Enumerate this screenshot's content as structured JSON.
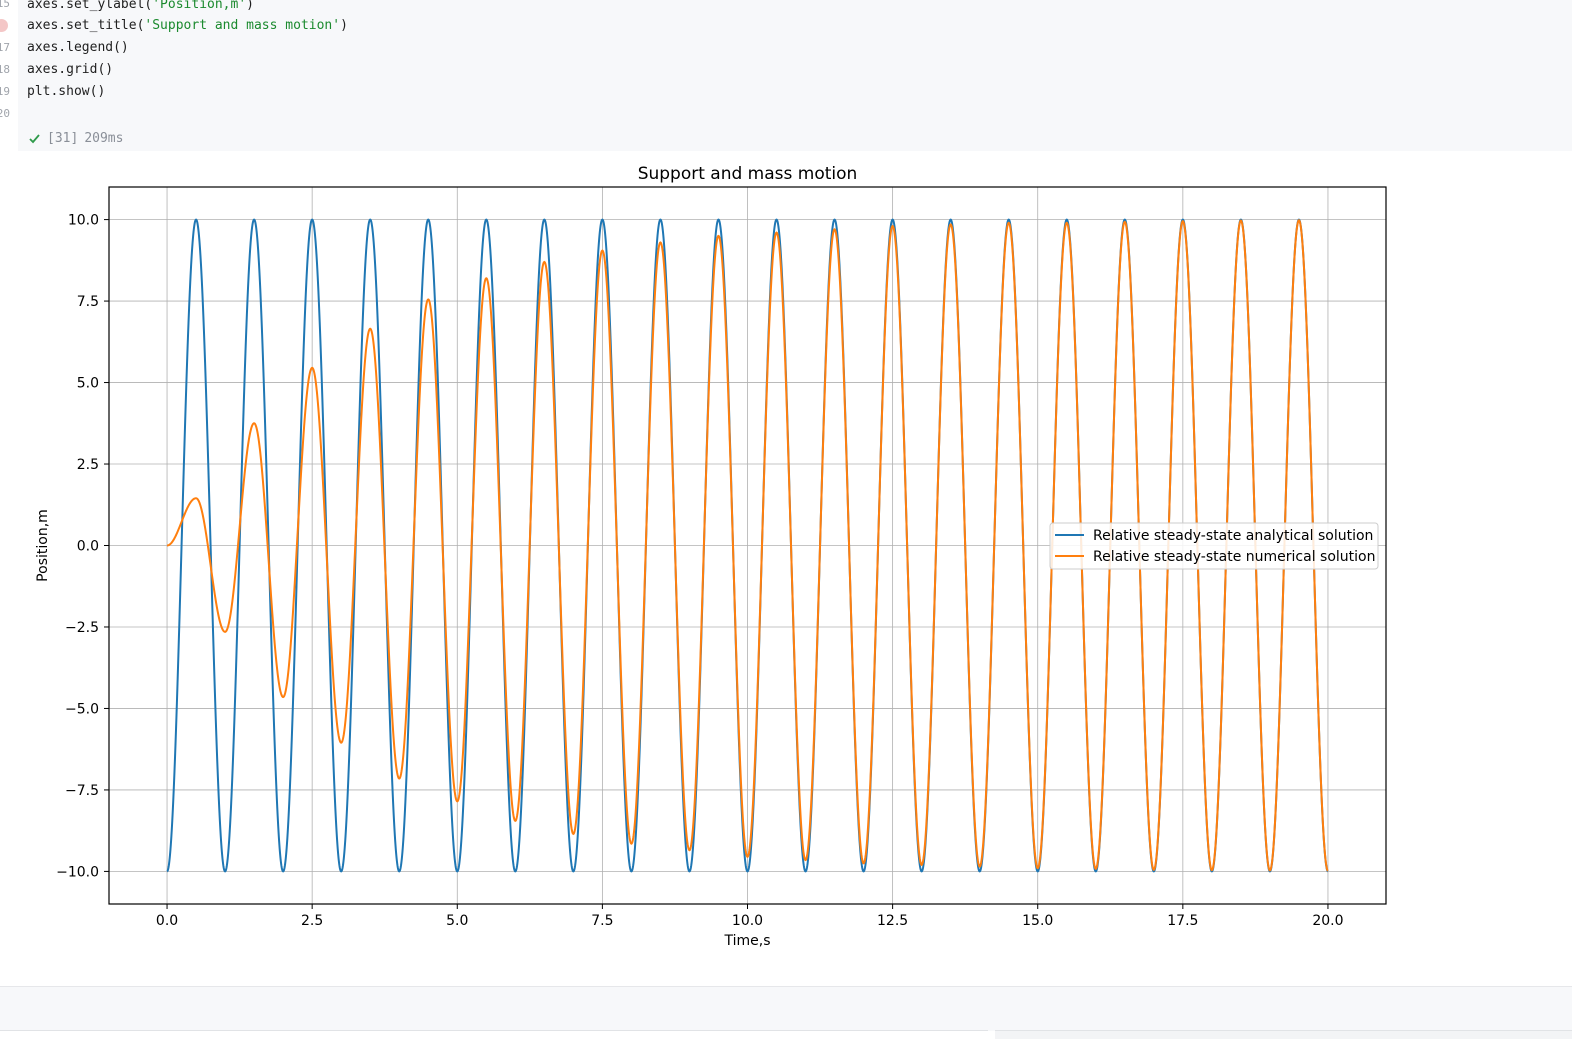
{
  "code_cell": {
    "line_numbers": [
      "15",
      "",
      "17",
      "18",
      "19",
      "20"
    ],
    "lines": [
      {
        "pre": "axes.set_ylabel(",
        "str": "'Position,m'",
        "post": ")"
      },
      {
        "pre": "axes.set_title(",
        "str": "'Support and mass motion'",
        "post": ")"
      },
      {
        "pre": "axes.legend()",
        "str": "",
        "post": ""
      },
      {
        "pre": "axes.grid()",
        "str": "",
        "post": ""
      },
      {
        "pre": "plt.show()",
        "str": "",
        "post": ""
      }
    ],
    "status": {
      "execution_count": "[31]",
      "duration": "209ms",
      "icon": "check-icon"
    }
  },
  "colors": {
    "analytical": "#1f77b4",
    "numerical": "#ff7f0e",
    "grid": "#b0b0b0",
    "string_literal": "#1b8a2e"
  },
  "chart_data": {
    "type": "line",
    "title": "Support and mass motion",
    "xlabel": "Time,s",
    "ylabel": "Position,m",
    "xlim": [
      -1.0,
      21.0
    ],
    "ylim": [
      -11.0,
      11.0
    ],
    "xticks": [
      0.0,
      2.5,
      5.0,
      7.5,
      10.0,
      12.5,
      15.0,
      17.5,
      20.0
    ],
    "xtick_labels": [
      "0.0",
      "2.5",
      "5.0",
      "7.5",
      "10.0",
      "12.5",
      "15.0",
      "17.5",
      "20.0"
    ],
    "yticks": [
      -10.0,
      -7.5,
      -5.0,
      -2.5,
      0.0,
      2.5,
      5.0,
      7.5,
      10.0
    ],
    "ytick_labels": [
      "−10.0",
      "−7.5",
      "−5.0",
      "−2.5",
      "0.0",
      "2.5",
      "5.0",
      "7.5",
      "10.0"
    ],
    "grid": true,
    "legend_position": "center right",
    "series": [
      {
        "name": "Relative steady-state analytical solution",
        "color_key": "analytical",
        "description_formula": "y = -10*cos(2*pi*t), t in [0, 20]",
        "x_range": [
          0,
          20
        ],
        "amplitude": 10,
        "period": 1.0,
        "phase_start": "minimum"
      },
      {
        "name": "Relative steady-state numerical solution",
        "color_key": "numerical",
        "x_range": [
          0,
          20
        ],
        "starts_at": 0.0,
        "peaks": [
          {
            "t": 0.5,
            "y": 1.45
          },
          {
            "t": 1.0,
            "y": -2.65
          },
          {
            "t": 1.5,
            "y": 3.75
          },
          {
            "t": 2.0,
            "y": -4.65
          },
          {
            "t": 2.5,
            "y": 5.45
          },
          {
            "t": 3.0,
            "y": -6.05
          },
          {
            "t": 3.5,
            "y": 6.65
          },
          {
            "t": 4.0,
            "y": -7.15
          },
          {
            "t": 4.5,
            "y": 7.55
          },
          {
            "t": 5.0,
            "y": -7.85
          },
          {
            "t": 5.5,
            "y": 8.2
          },
          {
            "t": 6.0,
            "y": -8.45
          },
          {
            "t": 6.5,
            "y": 8.7
          },
          {
            "t": 7.0,
            "y": -8.85
          },
          {
            "t": 7.5,
            "y": 9.05
          },
          {
            "t": 8.0,
            "y": -9.15
          },
          {
            "t": 8.5,
            "y": 9.3
          },
          {
            "t": 9.0,
            "y": -9.35
          },
          {
            "t": 9.5,
            "y": 9.5
          },
          {
            "t": 10.0,
            "y": -9.55
          },
          {
            "t": 10.5,
            "y": 9.6
          },
          {
            "t": 11.0,
            "y": -9.65
          },
          {
            "t": 11.5,
            "y": 9.7
          },
          {
            "t": 12.0,
            "y": -9.75
          },
          {
            "t": 12.5,
            "y": 9.8
          },
          {
            "t": 13.0,
            "y": -9.8
          },
          {
            "t": 13.5,
            "y": 9.85
          },
          {
            "t": 14.0,
            "y": -9.85
          },
          {
            "t": 14.5,
            "y": 9.9
          },
          {
            "t": 15.0,
            "y": -9.9
          },
          {
            "t": 15.5,
            "y": 9.9
          },
          {
            "t": 16.0,
            "y": -9.92
          },
          {
            "t": 16.5,
            "y": 9.93
          },
          {
            "t": 17.0,
            "y": -9.95
          },
          {
            "t": 17.5,
            "y": 9.95
          },
          {
            "t": 18.0,
            "y": -9.96
          },
          {
            "t": 18.5,
            "y": 9.97
          },
          {
            "t": 19.0,
            "y": -9.97
          },
          {
            "t": 19.5,
            "y": 9.98
          },
          {
            "t": 20.0,
            "y": -9.98
          }
        ]
      }
    ]
  }
}
